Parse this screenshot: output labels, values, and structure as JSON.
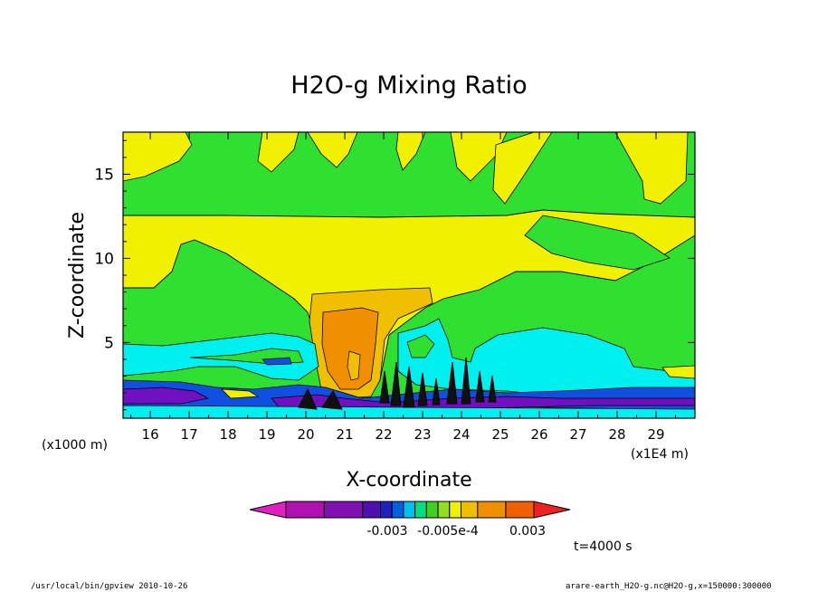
{
  "chart_data": {
    "type": "heatmap",
    "title": "H2O-g Mixing Ratio",
    "xlabel": "X-coordinate",
    "ylabel": "Z-coordinate",
    "x_unit_left": "(x1000 m)",
    "x_unit_right": "(x1E4 m)",
    "xlim": [
      15.3,
      30.0
    ],
    "ylim": [
      0.5,
      17.5
    ],
    "x_ticks": [
      "16",
      "17",
      "18",
      "19",
      "20",
      "21",
      "22",
      "23",
      "24",
      "25",
      "26",
      "27",
      "28",
      "29"
    ],
    "y_ticks": [
      "5",
      "10",
      "15"
    ],
    "colorbar": {
      "labels": [
        "-0.003",
        "-0.005e-4",
        "0.003"
      ],
      "colors": [
        "#e020c0",
        "#b010b0",
        "#8010b0",
        "#5010b0",
        "#2020c0",
        "#0060e0",
        "#00c0f0",
        "#00e080",
        "#40d020",
        "#90e020",
        "#f0f000",
        "#f0c000",
        "#f09000",
        "#f06000",
        "#f02020"
      ]
    },
    "regions": [
      {
        "level": "green",
        "color": "#30e030",
        "desc": "background"
      },
      {
        "level": "yellow",
        "color": "#f0f000"
      },
      {
        "level": "light-orange",
        "color": "#f0c000"
      },
      {
        "level": "orange",
        "color": "#f09000"
      },
      {
        "level": "cyan",
        "color": "#00f0f0"
      },
      {
        "level": "blue",
        "color": "#1050e0"
      },
      {
        "level": "purple",
        "color": "#7010c0"
      }
    ],
    "time_label": "t=4000 s",
    "footer_left": "/usr/local/bin/gpview  2010-10-26",
    "footer_right": "arare-earth_H2O-g.nc@H2O-g,x=150000:300000"
  }
}
